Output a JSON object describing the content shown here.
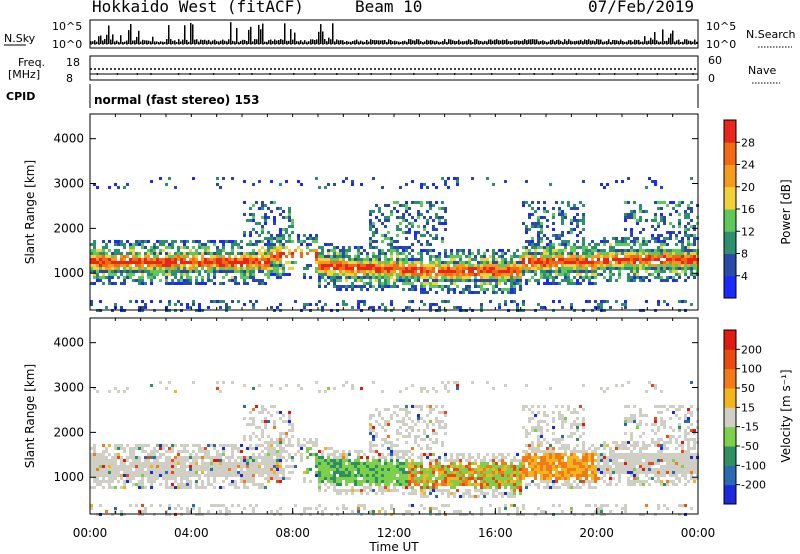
{
  "header": {
    "radar_title": "Hokkaido West (fitACF)",
    "beam_label": "Beam 10",
    "date_label": "07/Feb/2019"
  },
  "summary_panel": {
    "nsky_label": "N.Sky",
    "nsky_ticks": [
      "10^5",
      "10^0"
    ],
    "nsearch_label": "N.Search",
    "nsearch_ticks": [
      "10^5",
      "10^0"
    ],
    "freq_label_line1": "Freq.",
    "freq_label_line2": "[MHz]",
    "freq_ticks": [
      "18",
      "8"
    ],
    "nave_label": "Nave",
    "nave_ticks": [
      "60",
      "0"
    ],
    "cpid_label": "CPID",
    "cpid_text": "normal (fast stereo) 153"
  },
  "chart_data": [
    {
      "type": "heatmap",
      "name": "power",
      "ylabel": "Slant Range [km]",
      "xlabel": "",
      "y_ticks": [
        "1000",
        "2000",
        "3000",
        "4000"
      ],
      "ylim": [
        180,
        4550
      ],
      "colorbar": {
        "label": "Power [dB]",
        "tick_labels": [
          "4",
          "8",
          "12",
          "16",
          "20",
          "24",
          "28"
        ],
        "colors": [
          "#1a2aff",
          "#2a4aa8",
          "#2e8f6f",
          "#5ec85a",
          "#f2d23a",
          "#f59a1e",
          "#f26a12",
          "#e8261a"
        ]
      }
    },
    {
      "type": "heatmap",
      "name": "velocity",
      "ylabel": "Slant Range [km]",
      "xlabel": "Time UT",
      "y_ticks": [
        "1000",
        "2000",
        "3000",
        "4000"
      ],
      "ylim": [
        180,
        4550
      ],
      "x_ticks": [
        "00:00",
        "04:00",
        "08:00",
        "12:00",
        "16:00",
        "20:00",
        "00:00"
      ],
      "colorbar": {
        "label": "Velocity [m s⁻¹]",
        "tick_labels": [
          "200",
          "100",
          "50",
          "15",
          "-15",
          "-50",
          "-100",
          "-200"
        ],
        "colors": [
          "#1a2adc",
          "#2a6ab0",
          "#2e9060",
          "#7cd04a",
          "#cfcfc5",
          "#f2b51e",
          "#f27a18",
          "#e84a12",
          "#e01a0e"
        ]
      }
    }
  ]
}
